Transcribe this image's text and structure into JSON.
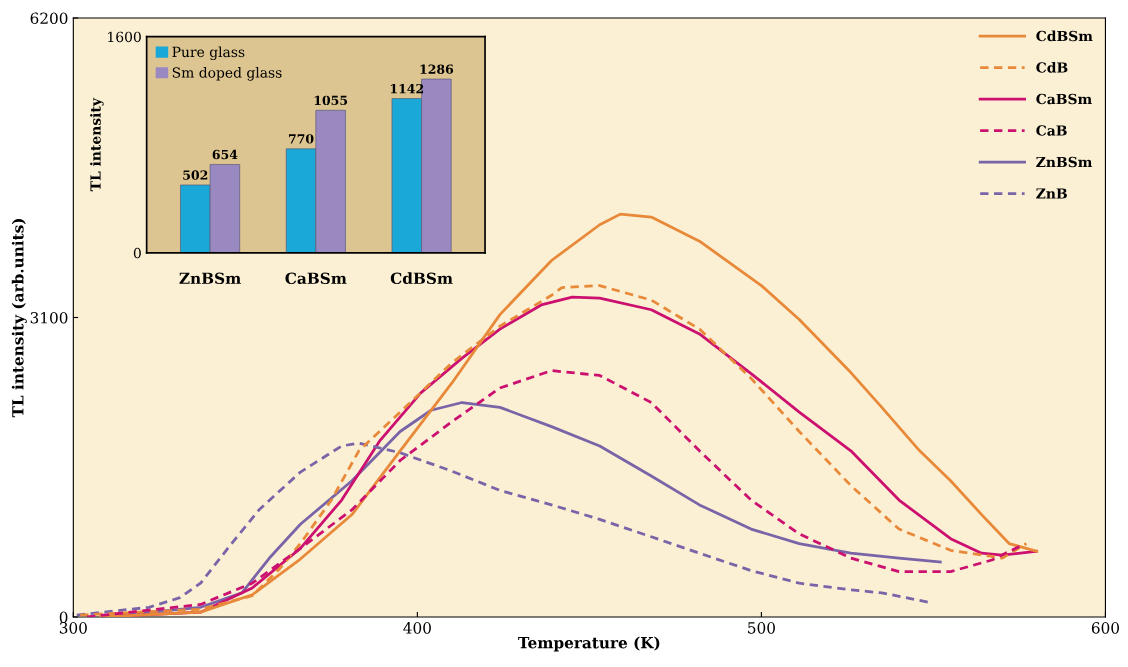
{
  "chart_data": [
    {
      "type": "line",
      "xlabel": "Temperature (K)",
      "ylabel": "TL intensity (arb.units)",
      "xlim": [
        300,
        600
      ],
      "xticks": [
        300,
        400,
        500,
        600
      ],
      "ylim": [
        0,
        6200
      ],
      "yticks": [
        0,
        3100,
        6200
      ],
      "grid": false,
      "legend": "top right",
      "marker": "none",
      "series": [
        {
          "name": "CdBSm",
          "color": "#e8893a",
          "line_style": "solid",
          "x": [
            308,
            337,
            352,
            366,
            381,
            395,
            410,
            424,
            439,
            453,
            459,
            468,
            482,
            500,
            511,
            526,
            535,
            546,
            555,
            564,
            572,
            580
          ],
          "values": [
            0,
            50,
            230,
            600,
            1060,
            1720,
            2420,
            3130,
            3690,
            4060,
            4170,
            4140,
            3890,
            3430,
            3080,
            2530,
            2170,
            1720,
            1410,
            1060,
            760,
            680
          ]
        },
        {
          "name": "CdB",
          "color": "#e8893a",
          "line_style": "dashed",
          "x": [
            302,
            337,
            352,
            360,
            366,
            375,
            383,
            395,
            410,
            424,
            439,
            442,
            453,
            468,
            482,
            497,
            511,
            526,
            540,
            555,
            570,
            577
          ],
          "values": [
            20,
            80,
            220,
            500,
            760,
            1210,
            1720,
            2120,
            2630,
            3010,
            3330,
            3410,
            3430,
            3280,
            2980,
            2470,
            1920,
            1360,
            910,
            690,
            610,
            760
          ]
        },
        {
          "name": "CaBSm",
          "color": "#cc1070",
          "line_style": "solid",
          "x": [
            308,
            337,
            352,
            366,
            378,
            389,
            401,
            413,
            424,
            436,
            445,
            453,
            468,
            482,
            497,
            511,
            526,
            540,
            555,
            564,
            570,
            580
          ],
          "values": [
            0,
            50,
            300,
            710,
            1210,
            1820,
            2320,
            2680,
            2980,
            3230,
            3310,
            3300,
            3180,
            2930,
            2520,
            2120,
            1720,
            1210,
            810,
            660,
            640,
            680
          ]
        },
        {
          "name": "CaB",
          "color": "#cc1070",
          "line_style": "dashed",
          "x": [
            304,
            337,
            352,
            366,
            381,
            395,
            410,
            424,
            439,
            453,
            468,
            482,
            497,
            511,
            526,
            540,
            555,
            567,
            575
          ],
          "values": [
            0,
            130,
            350,
            710,
            1110,
            1620,
            2020,
            2370,
            2550,
            2500,
            2220,
            1720,
            1210,
            860,
            610,
            470,
            470,
            590,
            730
          ]
        },
        {
          "name": "ZnBSm",
          "color": "#7a64a8",
          "line_style": "solid",
          "x": [
            308,
            337,
            349,
            357,
            366,
            381,
            395,
            404,
            413,
            424,
            439,
            453,
            468,
            482,
            497,
            511,
            526,
            540,
            552
          ],
          "values": [
            0,
            100,
            250,
            610,
            960,
            1410,
            1920,
            2140,
            2220,
            2170,
            1970,
            1770,
            1460,
            1160,
            910,
            760,
            660,
            610,
            570
          ]
        },
        {
          "name": "ZnB",
          "color": "#7a64a8",
          "line_style": "dashed",
          "x": [
            301,
            322,
            331,
            337,
            346,
            354,
            366,
            378,
            383,
            395,
            410,
            424,
            439,
            453,
            468,
            482,
            497,
            511,
            526,
            535,
            549
          ],
          "values": [
            20,
            100,
            200,
            350,
            760,
            1110,
            1500,
            1770,
            1800,
            1700,
            1510,
            1310,
            1160,
            1010,
            830,
            660,
            480,
            350,
            280,
            250,
            150
          ]
        }
      ]
    },
    {
      "type": "bar",
      "categories": [
        "ZnBSm",
        "CaBSm",
        "CdBSm"
      ],
      "ylabel": "TL intensity",
      "ylim": [
        0,
        1600
      ],
      "yticks": [
        0,
        1600
      ],
      "data_labels": true,
      "legend": "top left",
      "grid": false,
      "series": [
        {
          "name": "Pure glass",
          "color": "#1aa8d8",
          "values": [
            502,
            770,
            1142
          ]
        },
        {
          "name": "Sm doped glass",
          "color": "#9a88c0",
          "values": [
            654,
            1055,
            1286
          ]
        }
      ]
    }
  ]
}
